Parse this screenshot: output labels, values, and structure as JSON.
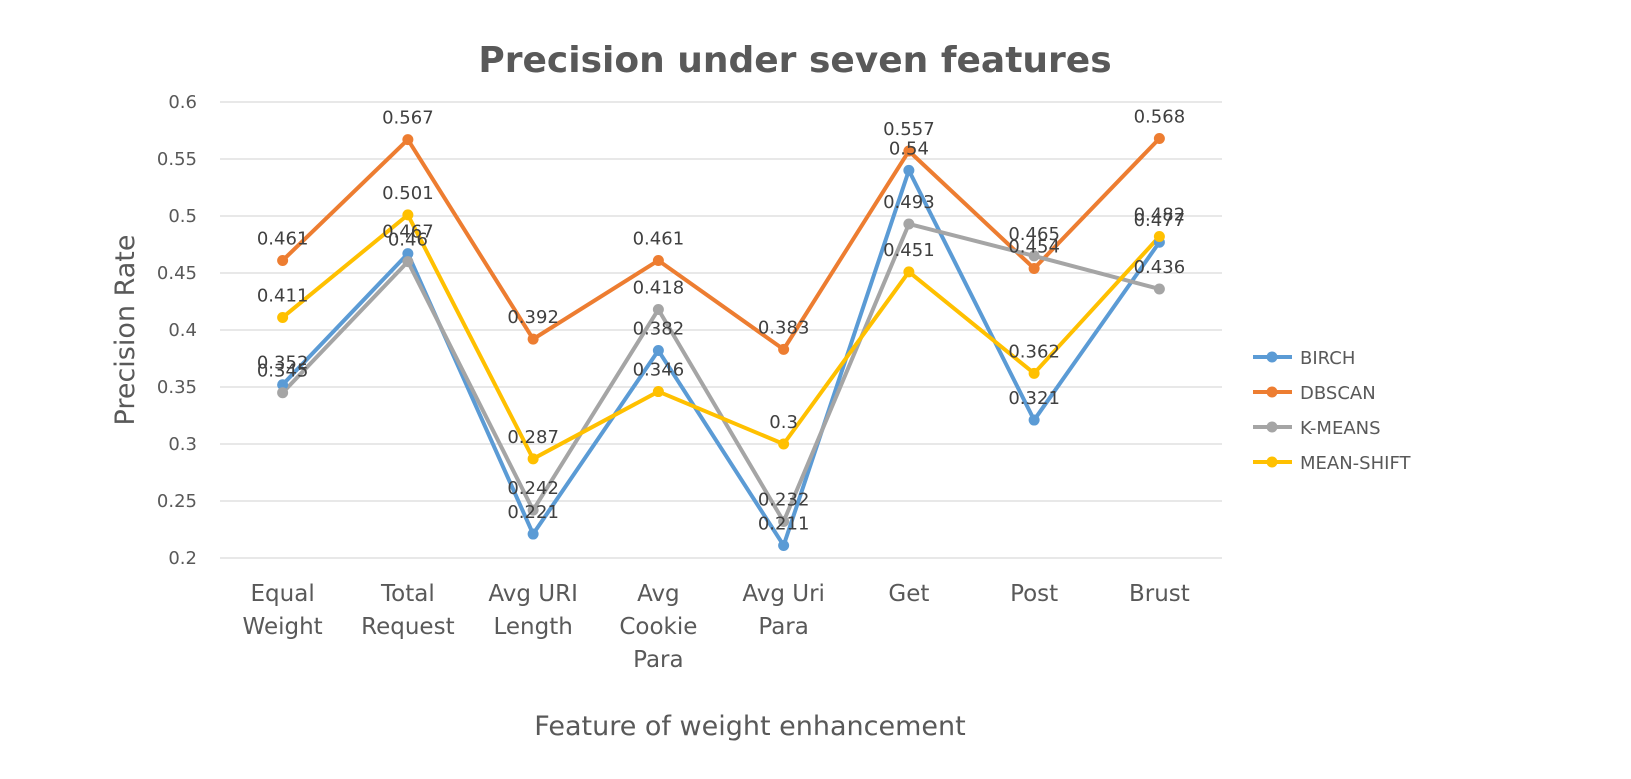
{
  "chart_data": {
    "type": "line",
    "title": "Precision under seven features",
    "xlabel": "Feature of weight enhancement",
    "ylabel": "Precision Rate",
    "ylim": [
      0.2,
      0.6
    ],
    "yticks": [
      "0.2",
      "0.25",
      "0.3",
      "0.35",
      "0.4",
      "0.45",
      "0.5",
      "0.55",
      "0.6"
    ],
    "grid": true,
    "legend_position": "right",
    "categories": [
      [
        "Equal",
        "Weight"
      ],
      [
        "Total",
        "Request"
      ],
      [
        "Avg URI",
        "Length"
      ],
      [
        "Avg",
        "Cookie",
        "Para"
      ],
      [
        "Avg Uri",
        "Para"
      ],
      [
        "Get"
      ],
      [
        "Post"
      ],
      [
        "Brust"
      ]
    ],
    "series": [
      {
        "name": "BIRCH",
        "color": "#5b9bd5",
        "values": [
          0.352,
          0.467,
          0.221,
          0.382,
          0.211,
          0.54,
          0.321,
          0.477
        ]
      },
      {
        "name": "DBSCAN",
        "color": "#ed7d31",
        "values": [
          0.461,
          0.567,
          0.392,
          0.461,
          0.383,
          0.557,
          0.454,
          0.568
        ]
      },
      {
        "name": "K-MEANS",
        "color": "#a5a5a5",
        "values": [
          0.345,
          0.46,
          0.242,
          0.418,
          0.232,
          0.493,
          0.465,
          0.436
        ]
      },
      {
        "name": "MEAN-SHIFT",
        "color": "#ffc000",
        "values": [
          0.411,
          0.501,
          0.287,
          0.346,
          0.3,
          0.451,
          0.362,
          0.482
        ]
      }
    ]
  }
}
